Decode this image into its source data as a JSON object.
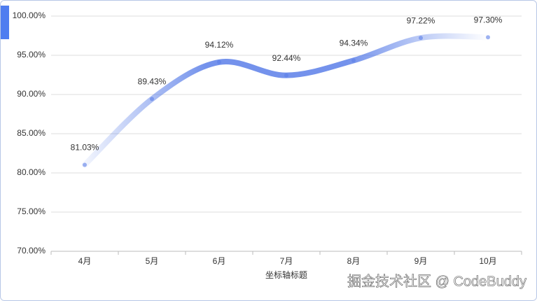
{
  "chart_data": {
    "type": "line",
    "categories": [
      "4月",
      "5月",
      "6月",
      "7月",
      "8月",
      "9月",
      "10月"
    ],
    "values": [
      81.03,
      89.43,
      94.12,
      92.44,
      94.34,
      97.22,
      97.3
    ],
    "value_labels": [
      "81.03%",
      "89.43%",
      "94.12%",
      "92.44%",
      "94.34%",
      "97.22%",
      "97.30%"
    ],
    "color": "#5b7fe8",
    "x_label": "坐标轴标题",
    "ylim": [
      70,
      100
    ],
    "yticks": [
      {
        "value": 70,
        "label": "70.00%"
      },
      {
        "value": 75,
        "label": "75.00%"
      },
      {
        "value": 80,
        "label": "80.00%"
      },
      {
        "value": 85,
        "label": "85.00%"
      },
      {
        "value": 90,
        "label": "90.00%"
      },
      {
        "value": 95,
        "label": "95.00%"
      },
      {
        "value": 100,
        "label": "100.00%"
      }
    ],
    "grid": true,
    "watermark": "掘金技术社区 @ CodeBuddy"
  }
}
